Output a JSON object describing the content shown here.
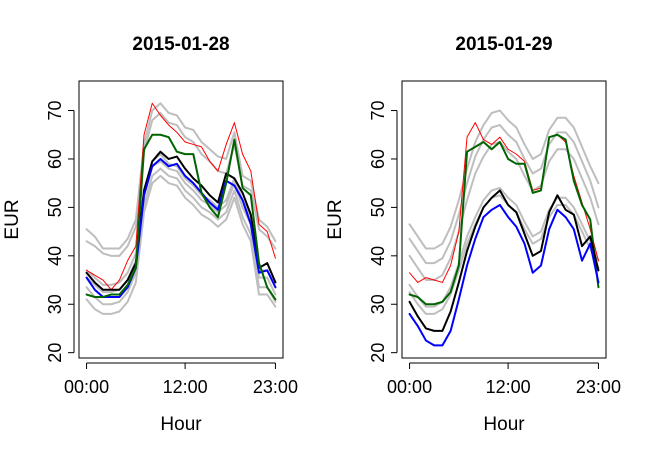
{
  "chart_data": [
    {
      "type": "line",
      "title": "2015-01-28",
      "xlabel": "Hour",
      "ylabel": "EUR",
      "xlim": [
        0,
        23
      ],
      "ylim": [
        20,
        75
      ],
      "x_ticks": [
        {
          "value": 0,
          "label": "00:00"
        },
        {
          "value": 12,
          "label": "12:00"
        },
        {
          "value": 23,
          "label": "23:00"
        }
      ],
      "y_ticks": [
        20,
        30,
        40,
        50,
        60,
        70
      ],
      "grid": false,
      "legend": "none",
      "series": [
        {
          "color": "#bebebe",
          "width": 2,
          "values": [
            45.5,
            44.0,
            41.5,
            41.5,
            41.5,
            43.5,
            47.5,
            63.0,
            70.0,
            71.5,
            69.5,
            69.0,
            66.5,
            66.0,
            63.5,
            62.0,
            60.5,
            60.0,
            65.5,
            56.5,
            55.5,
            47.5,
            46.0,
            43.0
          ]
        },
        {
          "color": "#bebebe",
          "width": 2,
          "values": [
            43.0,
            42.0,
            40.5,
            40.0,
            40.0,
            42.0,
            46.0,
            61.5,
            68.0,
            69.5,
            67.5,
            67.0,
            64.5,
            63.5,
            61.0,
            59.5,
            57.5,
            57.0,
            63.0,
            54.5,
            53.5,
            45.5,
            44.0,
            41.5
          ]
        },
        {
          "color": "#bebebe",
          "width": 2,
          "values": [
            37.0,
            35.5,
            34.0,
            34.0,
            34.5,
            36.5,
            40.5,
            53.5,
            59.5,
            61.0,
            59.0,
            58.5,
            56.0,
            54.5,
            52.5,
            51.5,
            50.0,
            51.5,
            56.0,
            51.5,
            48.0,
            37.0,
            37.0,
            33.5
          ]
        },
        {
          "color": "#bebebe",
          "width": 2,
          "values": [
            35.5,
            34.0,
            32.5,
            32.5,
            33.0,
            35.0,
            39.0,
            52.5,
            58.5,
            59.5,
            58.0,
            57.5,
            55.0,
            53.5,
            51.5,
            50.5,
            49.0,
            50.5,
            55.0,
            50.0,
            46.5,
            35.5,
            35.5,
            32.0
          ]
        },
        {
          "color": "#bebebe",
          "width": 2,
          "values": [
            33.5,
            31.5,
            30.0,
            30.0,
            30.5,
            32.5,
            36.5,
            50.5,
            56.5,
            58.0,
            56.5,
            56.0,
            53.5,
            52.0,
            50.0,
            49.0,
            47.5,
            49.0,
            53.5,
            48.0,
            44.5,
            33.5,
            33.5,
            30.5
          ]
        },
        {
          "color": "#bebebe",
          "width": 2,
          "values": [
            31.0,
            29.0,
            28.0,
            28.0,
            28.5,
            30.5,
            34.5,
            49.0,
            55.0,
            56.5,
            55.0,
            54.5,
            52.0,
            50.5,
            48.5,
            47.5,
            46.0,
            47.5,
            52.0,
            46.5,
            43.0,
            32.0,
            32.0,
            29.5
          ]
        },
        {
          "color": "#ff0000",
          "width": 1,
          "values": [
            37.0,
            36.0,
            35.0,
            33.0,
            35.0,
            39.0,
            42.0,
            65.0,
            71.5,
            69.0,
            67.0,
            65.5,
            63.5,
            63.0,
            62.5,
            59.5,
            57.5,
            63.0,
            67.5,
            61.0,
            57.5,
            46.5,
            45.0,
            39.5
          ]
        },
        {
          "color": "#000000",
          "width": 2,
          "values": [
            36.5,
            34.5,
            33.0,
            33.0,
            33.0,
            35.0,
            38.5,
            53.5,
            59.5,
            61.5,
            60.0,
            60.5,
            58.0,
            56.0,
            54.5,
            52.5,
            51.0,
            57.0,
            56.0,
            53.0,
            48.5,
            37.5,
            38.5,
            34.5
          ]
        },
        {
          "color": "#0000ff",
          "width": 2,
          "values": [
            35.5,
            33.0,
            31.5,
            31.5,
            31.5,
            33.5,
            37.5,
            52.5,
            58.5,
            60.0,
            58.5,
            59.0,
            56.5,
            55.0,
            53.0,
            51.0,
            49.5,
            55.5,
            54.5,
            51.5,
            46.5,
            36.5,
            37.0,
            33.5
          ]
        },
        {
          "color": "#006400",
          "width": 2,
          "values": [
            32.0,
            31.5,
            31.5,
            32.0,
            32.0,
            34.0,
            37.5,
            62.0,
            65.0,
            65.0,
            64.5,
            61.5,
            61.0,
            61.0,
            53.0,
            50.0,
            48.0,
            55.0,
            64.0,
            54.0,
            52.5,
            38.5,
            33.5,
            31.0
          ]
        }
      ]
    },
    {
      "type": "line",
      "title": "2015-01-29",
      "xlabel": "Hour",
      "ylabel": "EUR",
      "xlim": [
        0,
        23
      ],
      "ylim": [
        20,
        75
      ],
      "x_ticks": [
        {
          "value": 0,
          "label": "00:00"
        },
        {
          "value": 12,
          "label": "12:00"
        },
        {
          "value": 23,
          "label": "23:00"
        }
      ],
      "y_ticks": [
        20,
        30,
        40,
        50,
        60,
        70
      ],
      "grid": false,
      "legend": "none",
      "series": [
        {
          "color": "#bebebe",
          "width": 2,
          "values": [
            46.5,
            44.0,
            41.5,
            41.5,
            42.5,
            46.0,
            51.5,
            58.0,
            63.5,
            67.0,
            69.5,
            70.0,
            68.0,
            66.5,
            63.0,
            60.0,
            61.0,
            66.0,
            68.5,
            68.5,
            66.5,
            62.5,
            58.5,
            55.0
          ]
        },
        {
          "color": "#bebebe",
          "width": 2,
          "values": [
            43.5,
            41.0,
            38.5,
            38.5,
            39.5,
            43.0,
            48.5,
            55.0,
            60.5,
            64.0,
            66.5,
            67.0,
            65.0,
            63.5,
            60.0,
            57.0,
            58.0,
            63.0,
            65.5,
            65.5,
            63.5,
            59.5,
            55.5,
            50.0
          ]
        },
        {
          "color": "#bebebe",
          "width": 2,
          "values": [
            40.0,
            37.5,
            35.0,
            35.0,
            36.0,
            39.5,
            45.0,
            51.5,
            57.0,
            60.5,
            63.0,
            63.5,
            61.5,
            60.0,
            56.5,
            53.5,
            54.5,
            59.5,
            62.0,
            62.0,
            60.0,
            56.0,
            52.0,
            46.5
          ]
        },
        {
          "color": "#bebebe",
          "width": 2,
          "values": [
            34.0,
            31.5,
            29.5,
            29.5,
            30.5,
            33.5,
            38.5,
            44.0,
            48.0,
            51.5,
            53.5,
            54.0,
            52.0,
            50.5,
            47.0,
            44.0,
            45.0,
            49.5,
            52.0,
            52.0,
            50.0,
            46.5,
            43.0,
            39.0
          ]
        },
        {
          "color": "#bebebe",
          "width": 2,
          "values": [
            32.5,
            30.0,
            28.0,
            28.0,
            29.0,
            32.0,
            37.0,
            42.5,
            46.5,
            50.0,
            52.0,
            52.5,
            50.5,
            49.0,
            45.5,
            42.5,
            43.5,
            48.0,
            50.5,
            50.5,
            48.5,
            45.0,
            41.5,
            37.5
          ]
        },
        {
          "color": "#ff0000",
          "width": 1,
          "values": [
            36.5,
            34.5,
            35.5,
            35.0,
            34.5,
            38.0,
            45.0,
            64.5,
            67.5,
            64.0,
            63.0,
            64.5,
            62.0,
            61.0,
            59.5,
            53.5,
            54.0,
            64.5,
            65.0,
            63.5,
            56.5,
            51.0,
            45.5,
            39.0
          ]
        },
        {
          "color": "#006400",
          "width": 2,
          "values": [
            32.0,
            31.5,
            30.0,
            30.0,
            30.5,
            32.5,
            38.0,
            61.5,
            62.5,
            63.5,
            62.0,
            63.5,
            60.0,
            59.0,
            59.0,
            53.0,
            53.5,
            64.5,
            65.0,
            64.0,
            55.5,
            50.5,
            47.5,
            33.5
          ]
        },
        {
          "color": "#000000",
          "width": 2,
          "values": [
            30.5,
            27.5,
            25.0,
            24.5,
            24.5,
            28.5,
            34.5,
            41.0,
            46.0,
            50.0,
            52.0,
            53.5,
            50.5,
            49.0,
            44.5,
            40.0,
            41.0,
            49.0,
            52.5,
            49.5,
            48.5,
            42.0,
            44.0,
            37.0
          ]
        },
        {
          "color": "#0000ff",
          "width": 2,
          "values": [
            28.0,
            25.5,
            22.5,
            21.5,
            21.5,
            24.5,
            31.0,
            38.0,
            43.5,
            48.0,
            49.5,
            50.5,
            48.0,
            46.0,
            42.5,
            36.5,
            38.0,
            45.5,
            49.5,
            48.0,
            45.5,
            39.0,
            42.5,
            34.5
          ]
        }
      ]
    }
  ]
}
